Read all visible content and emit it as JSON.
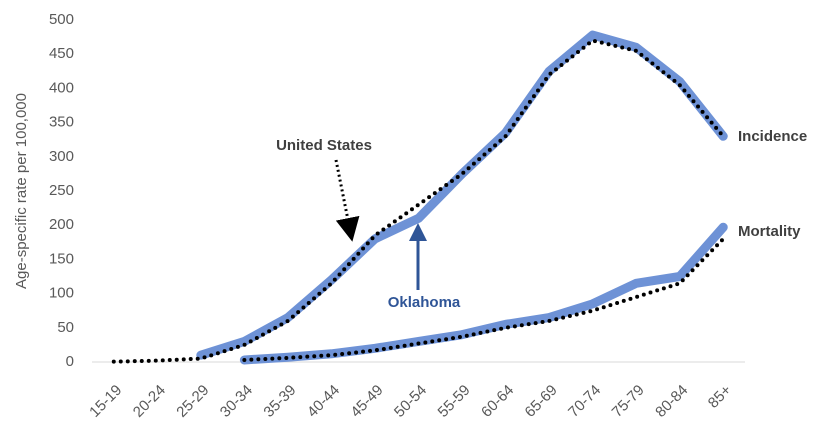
{
  "chart_data": {
    "type": "line",
    "y_label": "Age-specific rate per 100,000",
    "categories": [
      "15-19",
      "20-24",
      "25-29",
      "30-34",
      "35-39",
      "40-44",
      "45-49",
      "50-54",
      "55-59",
      "60-64",
      "65-69",
      "70-74",
      "75-79",
      "80-84",
      "85+"
    ],
    "series": [
      {
        "name": "Oklahoma",
        "color": "#6e92d6",
        "style": "solid",
        "values": [
          null,
          null,
          10,
          30,
          65,
          120,
          180,
          210,
          275,
          335,
          425,
          478,
          460,
          410,
          330
        ]
      },
      {
        "name": "United States",
        "color": "#000000",
        "style": "dotted",
        "values": [
          0.5,
          2,
          5,
          25,
          60,
          115,
          185,
          230,
          275,
          330,
          420,
          470,
          455,
          405,
          330
        ]
      },
      {
        "name": "Oklahoma",
        "color": "#6e92d6",
        "style": "solid",
        "values": [
          null,
          null,
          null,
          3,
          7,
          12,
          20,
          30,
          40,
          55,
          65,
          85,
          115,
          125,
          197
        ]
      },
      {
        "name": "United States",
        "color": "#000000",
        "style": "dotted",
        "values": [
          null,
          null,
          null,
          3,
          6,
          10,
          17,
          27,
          37,
          50,
          60,
          75,
          95,
          115,
          180
        ]
      }
    ],
    "annotations": [
      "United States",
      "Oklahoma",
      "Incidence",
      "Mortality"
    ],
    "ylim": [
      0,
      500
    ],
    "yticks": [
      0,
      50,
      100,
      150,
      200,
      250,
      300,
      350,
      400,
      450,
      500
    ],
    "grid": false
  }
}
